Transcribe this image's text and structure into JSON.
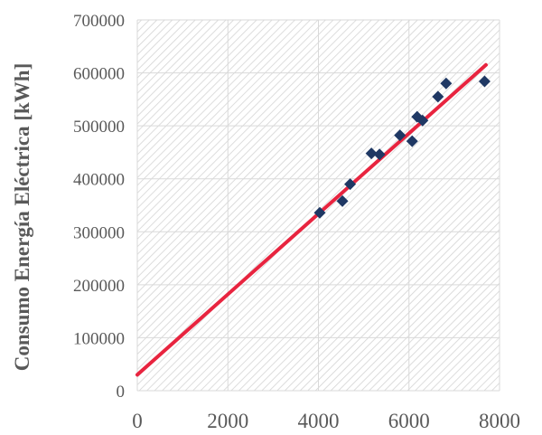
{
  "chart_data": {
    "type": "scatter",
    "title": "",
    "xlabel": "",
    "ylabel": "Consumo  Energía Eléctrica [kWh]",
    "xlim": [
      0,
      8000
    ],
    "ylim": [
      0,
      700000
    ],
    "x_ticks": [
      0,
      2000,
      4000,
      6000,
      8000
    ],
    "y_ticks": [
      0,
      100000,
      200000,
      300000,
      400000,
      500000,
      600000,
      700000
    ],
    "grid": true,
    "legend": "none",
    "series": [
      {
        "marker": "diamond",
        "color": "#1f3864",
        "points": [
          [
            4030,
            336000
          ],
          [
            4530,
            358000
          ],
          [
            4700,
            390000
          ],
          [
            5170,
            448000
          ],
          [
            5350,
            446000
          ],
          [
            5800,
            482000
          ],
          [
            6070,
            471000
          ],
          [
            6180,
            517000
          ],
          [
            6300,
            510000
          ],
          [
            6640,
            555000
          ],
          [
            6820,
            580000
          ],
          [
            7670,
            584000
          ]
        ]
      }
    ],
    "trendline": {
      "color": "#e8243f",
      "x": [
        0,
        7700
      ],
      "y": [
        30000,
        615000
      ]
    }
  }
}
